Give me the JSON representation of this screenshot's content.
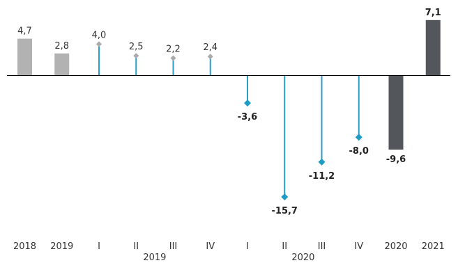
{
  "chart_data": {
    "type": "bar",
    "categories": [
      "2018",
      "2019",
      "I",
      "II",
      "III",
      "IV",
      "I",
      "II",
      "III",
      "IV",
      "2020",
      "2021"
    ],
    "values": [
      4.7,
      2.8,
      4.0,
      2.5,
      2.2,
      2.4,
      -3.6,
      -15.7,
      -11.2,
      -8.0,
      -9.6,
      7.1
    ],
    "value_labels": [
      "4,7",
      "2,8",
      "4,0",
      "2,5",
      "2,2",
      "2,4",
      "-3,6",
      "-15,7",
      "-11,2",
      "-8,0",
      "-9,6",
      "7,1"
    ],
    "mark_styles": [
      "bar",
      "bar",
      "lollipop",
      "lollipop",
      "lollipop",
      "lollipop",
      "lollipop",
      "lollipop",
      "lollipop",
      "lollipop",
      "bar",
      "bar"
    ],
    "group_labels": [
      {
        "label": "2019",
        "from": 2,
        "to": 5
      },
      {
        "label": "2020",
        "from": 6,
        "to": 9
      }
    ],
    "title": "",
    "xlabel": "",
    "ylabel": "",
    "ylim": [
      -17.5,
      9
    ],
    "grid": false,
    "legend": "none",
    "colors": {
      "past_bar": "#b2b2b2",
      "current_bar": "#53565a",
      "stem_line": "#2a9ec8",
      "marker_2019": "#aaaaaa",
      "marker_2020": "#1e9cc6",
      "axis": "#000000"
    }
  }
}
